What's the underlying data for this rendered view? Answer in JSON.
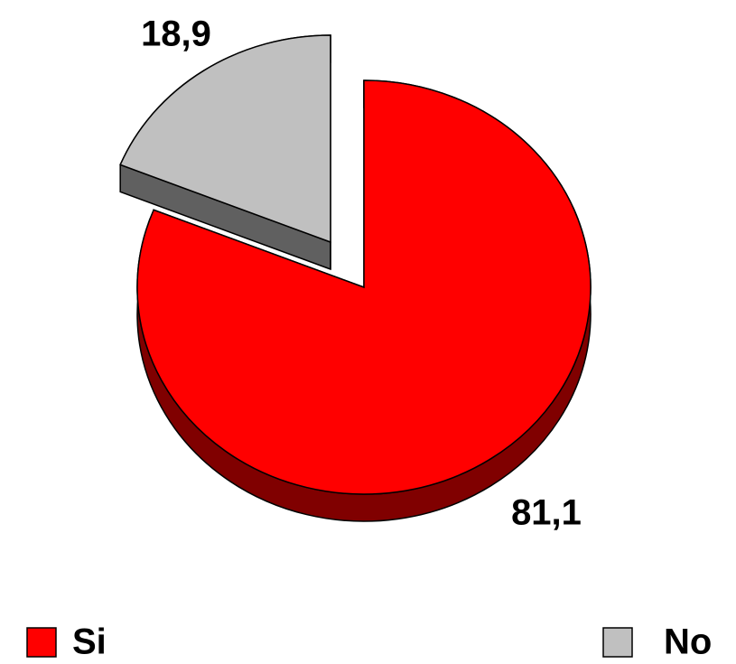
{
  "chart_data": {
    "type": "pie",
    "categories": [
      "Si",
      "No"
    ],
    "values": [
      81.1,
      18.9
    ],
    "value_labels": [
      "81,1",
      "18,9"
    ],
    "colors": [
      "#ff0000",
      "#c0c0c0"
    ],
    "legend": "bottom"
  }
}
